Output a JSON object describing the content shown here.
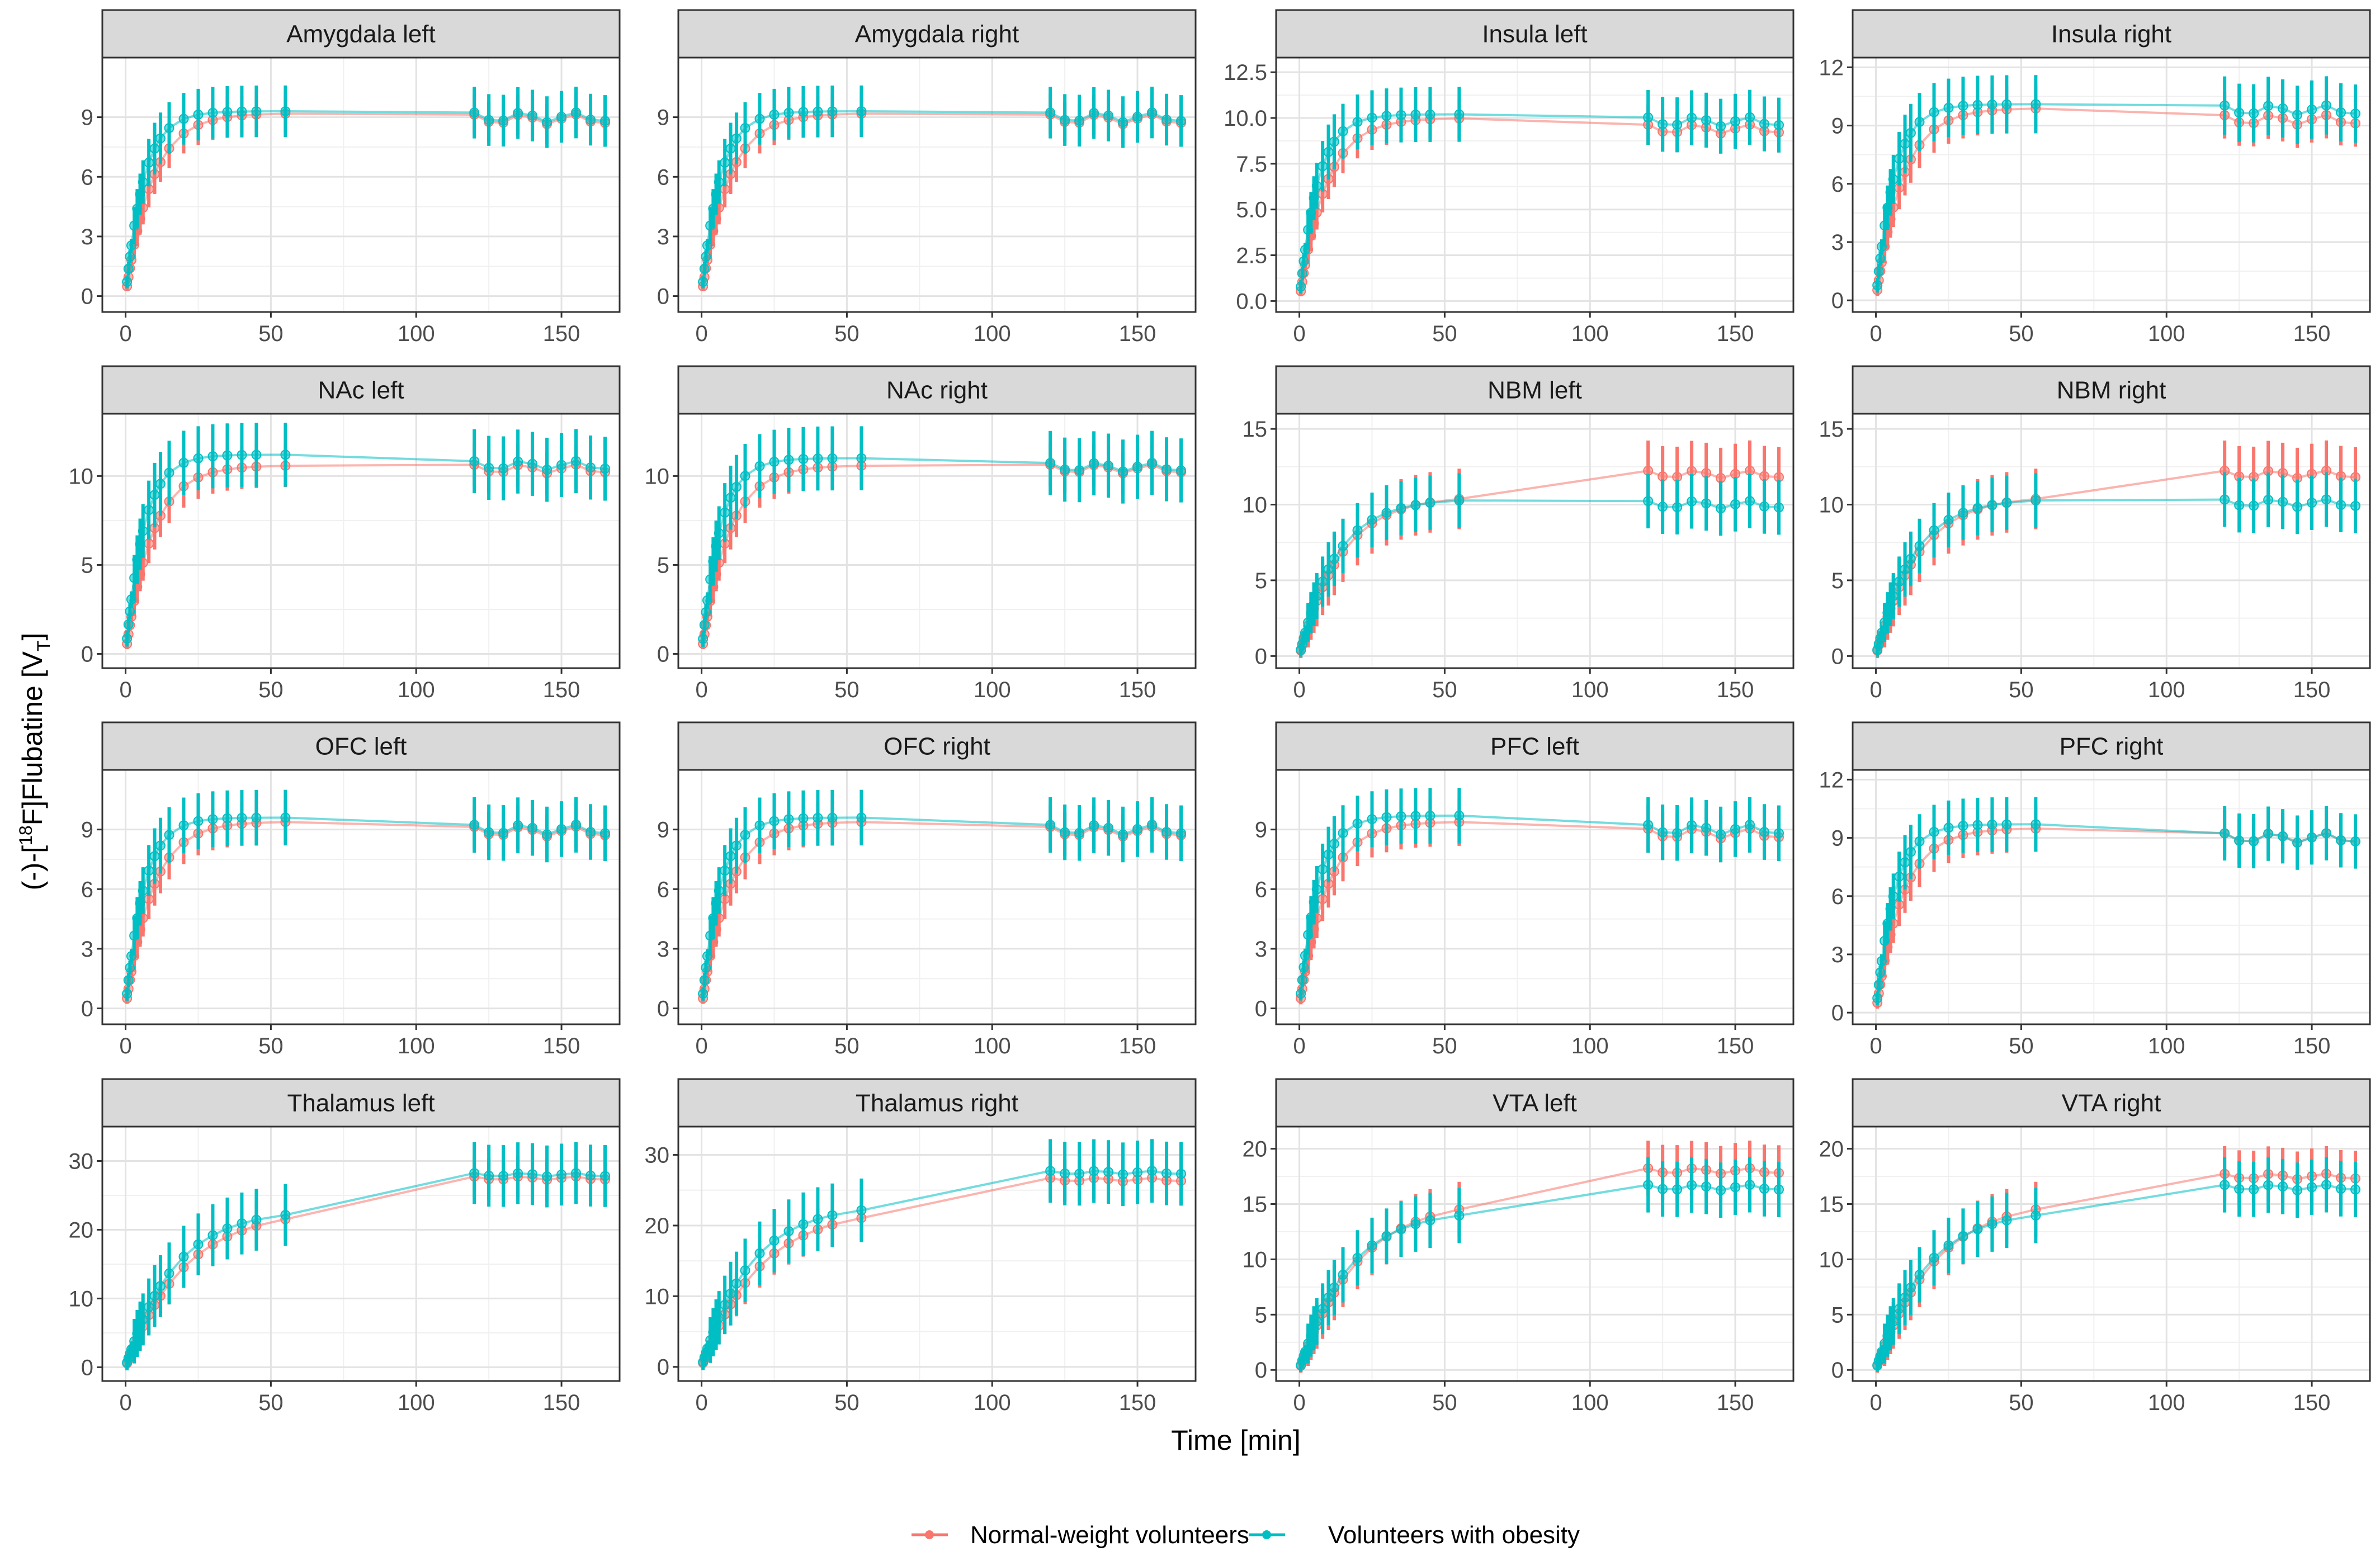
{
  "chart_data": {
    "type": "line",
    "layout": "facet-grid 4x4",
    "xlabel": "Time [min]",
    "ylabel": {
      "prefix": "(-)-[",
      "sup": "18",
      "mid": "F]Flubatine [V",
      "sub": "T",
      "suffix": "]"
    },
    "x_ticks": [
      0,
      50,
      100,
      150
    ],
    "xlim": [
      -8,
      170
    ],
    "time_points": [
      0.5,
      1,
      1.5,
      2,
      3,
      4,
      5,
      6,
      8,
      10,
      12,
      15,
      20,
      25,
      30,
      35,
      40,
      45,
      55,
      120,
      125,
      130,
      135,
      140,
      145,
      150,
      155,
      160,
      165
    ],
    "legend": {
      "position": "bottom",
      "entries": [
        {
          "label": "Normal-weight volunteers",
          "color": "#F8766D"
        },
        {
          "label": "Volunteers with obesity",
          "color": "#00BFC4"
        }
      ]
    },
    "panels": [
      {
        "title": "Amygdala left",
        "ylim": [
          -0.8,
          12
        ],
        "ticks": [
          0,
          3,
          6,
          9
        ],
        "tick_labels": [
          "0",
          "3",
          "6",
          "9"
        ],
        "series": [
          {
            "name": "Normal-weight volunteers",
            "plateau": 9.2,
            "k": 0.11,
            "late": 8.9,
            "err": 1.0
          },
          {
            "name": "Volunteers with obesity",
            "plateau": 9.3,
            "k": 0.16,
            "late": 9.0,
            "err": 1.3
          }
        ]
      },
      {
        "title": "Amygdala right",
        "ylim": [
          -0.8,
          12
        ],
        "ticks": [
          0,
          3,
          6,
          9
        ],
        "tick_labels": [
          "0",
          "3",
          "6",
          "9"
        ],
        "series": [
          {
            "name": "Normal-weight volunteers",
            "plateau": 9.2,
            "k": 0.11,
            "late": 8.9,
            "err": 1.0
          },
          {
            "name": "Volunteers with obesity",
            "plateau": 9.3,
            "k": 0.16,
            "late": 9.0,
            "err": 1.3
          }
        ]
      },
      {
        "title": "Insula left",
        "ylim": [
          -0.6,
          13.3
        ],
        "ticks": [
          0,
          2.5,
          5,
          7.5,
          10,
          12.5
        ],
        "tick_labels": [
          "0.0",
          "2.5",
          "5.0",
          "7.5",
          "10.0",
          "12.5"
        ],
        "series": [
          {
            "name": "Normal-weight volunteers",
            "plateau": 10.0,
            "k": 0.11,
            "late": 9.4,
            "err": 1.1
          },
          {
            "name": "Volunteers with obesity",
            "plateau": 10.2,
            "k": 0.16,
            "late": 9.8,
            "err": 1.5
          }
        ]
      },
      {
        "title": "Insula right",
        "ylim": [
          -0.6,
          12.5
        ],
        "ticks": [
          0,
          3,
          6,
          9,
          12
        ],
        "tick_labels": [
          "0",
          "3",
          "6",
          "9",
          "12"
        ],
        "series": [
          {
            "name": "Normal-weight volunteers",
            "plateau": 9.9,
            "k": 0.11,
            "late": 9.3,
            "err": 1.2
          },
          {
            "name": "Volunteers with obesity",
            "plateau": 10.1,
            "k": 0.16,
            "late": 9.8,
            "err": 1.5
          }
        ]
      },
      {
        "title": "NAc left",
        "ylim": [
          -0.8,
          13.5
        ],
        "ticks": [
          0,
          5,
          10
        ],
        "tick_labels": [
          "0",
          "5",
          "10"
        ],
        "series": [
          {
            "name": "Normal-weight volunteers",
            "plateau": 10.6,
            "k": 0.11,
            "late": 10.4,
            "err": 1.2
          },
          {
            "name": "Volunteers with obesity",
            "plateau": 11.2,
            "k": 0.16,
            "late": 10.6,
            "err": 1.8
          }
        ]
      },
      {
        "title": "NAc right",
        "ylim": [
          -0.8,
          13.5
        ],
        "ticks": [
          0,
          5,
          10
        ],
        "tick_labels": [
          "0",
          "5",
          "10"
        ],
        "series": [
          {
            "name": "Normal-weight volunteers",
            "plateau": 10.6,
            "k": 0.11,
            "late": 10.4,
            "err": 1.2
          },
          {
            "name": "Volunteers with obesity",
            "plateau": 11.0,
            "k": 0.16,
            "late": 10.5,
            "err": 1.8
          }
        ]
      },
      {
        "title": "NBM left",
        "ylim": [
          -0.8,
          16
        ],
        "ticks": [
          0,
          5,
          10,
          15
        ],
        "tick_labels": [
          "0",
          "5",
          "10",
          "15"
        ],
        "series": [
          {
            "name": "Normal-weight volunteers",
            "plateau": 10.6,
            "k": 0.07,
            "late": 12.0,
            "err": 2.0
          },
          {
            "name": "Volunteers with obesity",
            "plateau": 10.4,
            "k": 0.08,
            "late": 10.0,
            "err": 1.8
          }
        ]
      },
      {
        "title": "NBM right",
        "ylim": [
          -0.8,
          16
        ],
        "ticks": [
          0,
          5,
          10,
          15
        ],
        "tick_labels": [
          "0",
          "5",
          "10",
          "15"
        ],
        "series": [
          {
            "name": "Normal-weight volunteers",
            "plateau": 10.6,
            "k": 0.07,
            "late": 12.0,
            "err": 2.0
          },
          {
            "name": "Volunteers with obesity",
            "plateau": 10.4,
            "k": 0.08,
            "late": 10.1,
            "err": 1.8
          }
        ]
      },
      {
        "title": "OFC left",
        "ylim": [
          -0.8,
          12
        ],
        "ticks": [
          0,
          3,
          6,
          9
        ],
        "tick_labels": [
          "0",
          "3",
          "6",
          "9"
        ],
        "series": [
          {
            "name": "Normal-weight volunteers",
            "plateau": 9.4,
            "k": 0.11,
            "late": 8.9,
            "err": 1.1
          },
          {
            "name": "Volunteers with obesity",
            "plateau": 9.6,
            "k": 0.16,
            "late": 9.0,
            "err": 1.4
          }
        ]
      },
      {
        "title": "OFC right",
        "ylim": [
          -0.8,
          12
        ],
        "ticks": [
          0,
          3,
          6,
          9
        ],
        "tick_labels": [
          "0",
          "3",
          "6",
          "9"
        ],
        "series": [
          {
            "name": "Normal-weight volunteers",
            "plateau": 9.4,
            "k": 0.11,
            "late": 8.9,
            "err": 1.1
          },
          {
            "name": "Volunteers with obesity",
            "plateau": 9.6,
            "k": 0.16,
            "late": 9.0,
            "err": 1.4
          }
        ]
      },
      {
        "title": "PFC left",
        "ylim": [
          -0.8,
          12
        ],
        "ticks": [
          0,
          3,
          6,
          9
        ],
        "tick_labels": [
          "0",
          "3",
          "6",
          "9"
        ],
        "series": [
          {
            "name": "Normal-weight volunteers",
            "plateau": 9.4,
            "k": 0.11,
            "late": 8.8,
            "err": 1.2
          },
          {
            "name": "Volunteers with obesity",
            "plateau": 9.7,
            "k": 0.16,
            "late": 9.0,
            "err": 1.4
          }
        ]
      },
      {
        "title": "PFC right",
        "ylim": [
          -0.6,
          12.5
        ],
        "ticks": [
          0,
          3,
          6,
          9,
          12
        ],
        "tick_labels": [
          "0",
          "3",
          "6",
          "9",
          "12"
        ],
        "series": [
          {
            "name": "Normal-weight volunteers",
            "plateau": 9.5,
            "k": 0.11,
            "late": 9.0,
            "err": 1.2
          },
          {
            "name": "Volunteers with obesity",
            "plateau": 9.7,
            "k": 0.16,
            "late": 9.0,
            "err": 1.4
          }
        ]
      },
      {
        "title": "Thalamus left",
        "ylim": [
          -2,
          35
        ],
        "ticks": [
          0,
          10,
          20,
          30
        ],
        "tick_labels": [
          "0",
          "10",
          "20",
          "30"
        ],
        "series": [
          {
            "name": "Normal-weight volunteers",
            "plateau": 23.0,
            "k": 0.05,
            "late": 27.5,
            "err": 3.0
          },
          {
            "name": "Volunteers with obesity",
            "plateau": 23.0,
            "k": 0.06,
            "late": 28.0,
            "err": 4.5
          }
        ]
      },
      {
        "title": "Thalamus right",
        "ylim": [
          -2,
          34
        ],
        "ticks": [
          0,
          10,
          20,
          30
        ],
        "tick_labels": [
          "0",
          "10",
          "20",
          "30"
        ],
        "series": [
          {
            "name": "Normal-weight volunteers",
            "plateau": 22.5,
            "k": 0.05,
            "late": 26.5,
            "err": 3.0
          },
          {
            "name": "Volunteers with obesity",
            "plateau": 23.0,
            "k": 0.06,
            "late": 27.5,
            "err": 4.5
          }
        ]
      },
      {
        "title": "VTA left",
        "ylim": [
          -1,
          22
        ],
        "ticks": [
          0,
          5,
          10,
          15,
          20
        ],
        "tick_labels": [
          "0",
          "5",
          "10",
          "15",
          "20"
        ],
        "series": [
          {
            "name": "Normal-weight volunteers",
            "plateau": 15.5,
            "k": 0.05,
            "late": 18.0,
            "err": 2.5
          },
          {
            "name": "Volunteers with obesity",
            "plateau": 14.5,
            "k": 0.06,
            "late": 16.5,
            "err": 2.5
          }
        ]
      },
      {
        "title": "VTA right",
        "ylim": [
          -1,
          22
        ],
        "ticks": [
          0,
          5,
          10,
          15,
          20
        ],
        "tick_labels": [
          "0",
          "5",
          "10",
          "15",
          "20"
        ],
        "series": [
          {
            "name": "Normal-weight volunteers",
            "plateau": 15.5,
            "k": 0.05,
            "late": 17.5,
            "err": 2.5
          },
          {
            "name": "Volunteers with obesity",
            "plateau": 14.5,
            "k": 0.06,
            "late": 16.5,
            "err": 2.5
          }
        ]
      }
    ]
  }
}
